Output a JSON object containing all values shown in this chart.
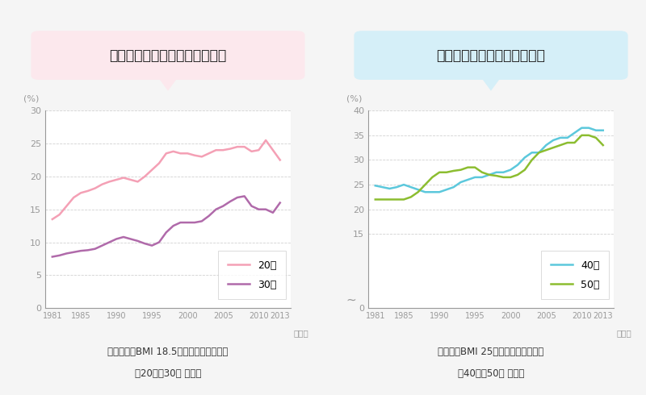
{
  "left_title": "若年女性は低体重者が増加傾向",
  "right_title": "中年男性は肥満者が増加傾向",
  "left_subtitle1": "低体重者（BMI 18.5未満）の割合の推移",
  "left_subtitle2": "（20代・30代 女性）",
  "right_subtitle1": "肥満者（BMI 25以上）の割合の推移",
  "right_subtitle2": "（40代・50代 男性）",
  "years_full": [
    1981,
    1982,
    1983,
    1984,
    1985,
    1986,
    1987,
    1988,
    1989,
    1990,
    1991,
    1992,
    1993,
    1994,
    1995,
    1996,
    1997,
    1998,
    1999,
    2000,
    2001,
    2002,
    2003,
    2004,
    2005,
    2006,
    2007,
    2008,
    2009,
    2010,
    2011,
    2012,
    2013
  ],
  "left_20s": [
    13.5,
    14.2,
    15.5,
    16.8,
    17.5,
    17.8,
    18.2,
    18.8,
    19.2,
    19.5,
    19.8,
    19.5,
    19.2,
    20.0,
    21.0,
    22.0,
    23.5,
    23.8,
    23.5,
    23.5,
    23.2,
    23.0,
    23.5,
    24.0,
    24.0,
    24.2,
    24.5,
    24.5,
    23.8,
    24.0,
    25.5,
    24.0,
    22.5
  ],
  "left_30s": [
    7.8,
    8.0,
    8.3,
    8.5,
    8.7,
    8.8,
    9.0,
    9.5,
    10.0,
    10.5,
    10.8,
    10.5,
    10.2,
    9.8,
    9.5,
    10.0,
    11.5,
    12.5,
    13.0,
    13.0,
    13.0,
    13.2,
    14.0,
    15.0,
    15.5,
    16.2,
    16.8,
    17.0,
    15.5,
    15.0,
    15.0,
    14.5,
    16.0
  ],
  "right_40s": [
    24.8,
    24.5,
    24.2,
    24.5,
    25.0,
    24.5,
    24.0,
    23.5,
    23.5,
    23.5,
    24.0,
    24.5,
    25.5,
    26.0,
    26.5,
    26.5,
    27.0,
    27.5,
    27.5,
    28.0,
    29.0,
    30.5,
    31.5,
    31.5,
    33.0,
    34.0,
    34.5,
    34.5,
    35.5,
    36.5,
    36.5,
    36.0,
    36.0
  ],
  "right_50s": [
    22.0,
    22.0,
    22.0,
    22.0,
    22.0,
    22.5,
    23.5,
    25.0,
    26.5,
    27.5,
    27.5,
    27.8,
    28.0,
    28.5,
    28.5,
    27.5,
    27.0,
    26.8,
    26.5,
    26.5,
    27.0,
    28.0,
    30.0,
    31.5,
    32.0,
    32.5,
    33.0,
    33.5,
    33.5,
    35.0,
    35.0,
    34.5,
    33.0
  ],
  "left_ylim": [
    0,
    30
  ],
  "right_ylim": [
    0,
    40
  ],
  "left_yticks": [
    0,
    5,
    10,
    15,
    20,
    25,
    30
  ],
  "right_yticks": [
    0,
    15,
    20,
    25,
    30,
    35,
    40
  ],
  "xticks": [
    1981,
    1985,
    1990,
    1995,
    2000,
    2005,
    2010,
    2013
  ],
  "color_20s": "#f4a0b5",
  "color_30s": "#b06aaa",
  "color_40s": "#5cc8dc",
  "color_50s": "#8cbd30",
  "bg_color": "#f5f5f5",
  "left_bubble_color": "#fce8ed",
  "right_bubble_color": "#d5eff8",
  "grid_color": "#cccccc",
  "axis_color": "#999999",
  "text_color": "#333333"
}
